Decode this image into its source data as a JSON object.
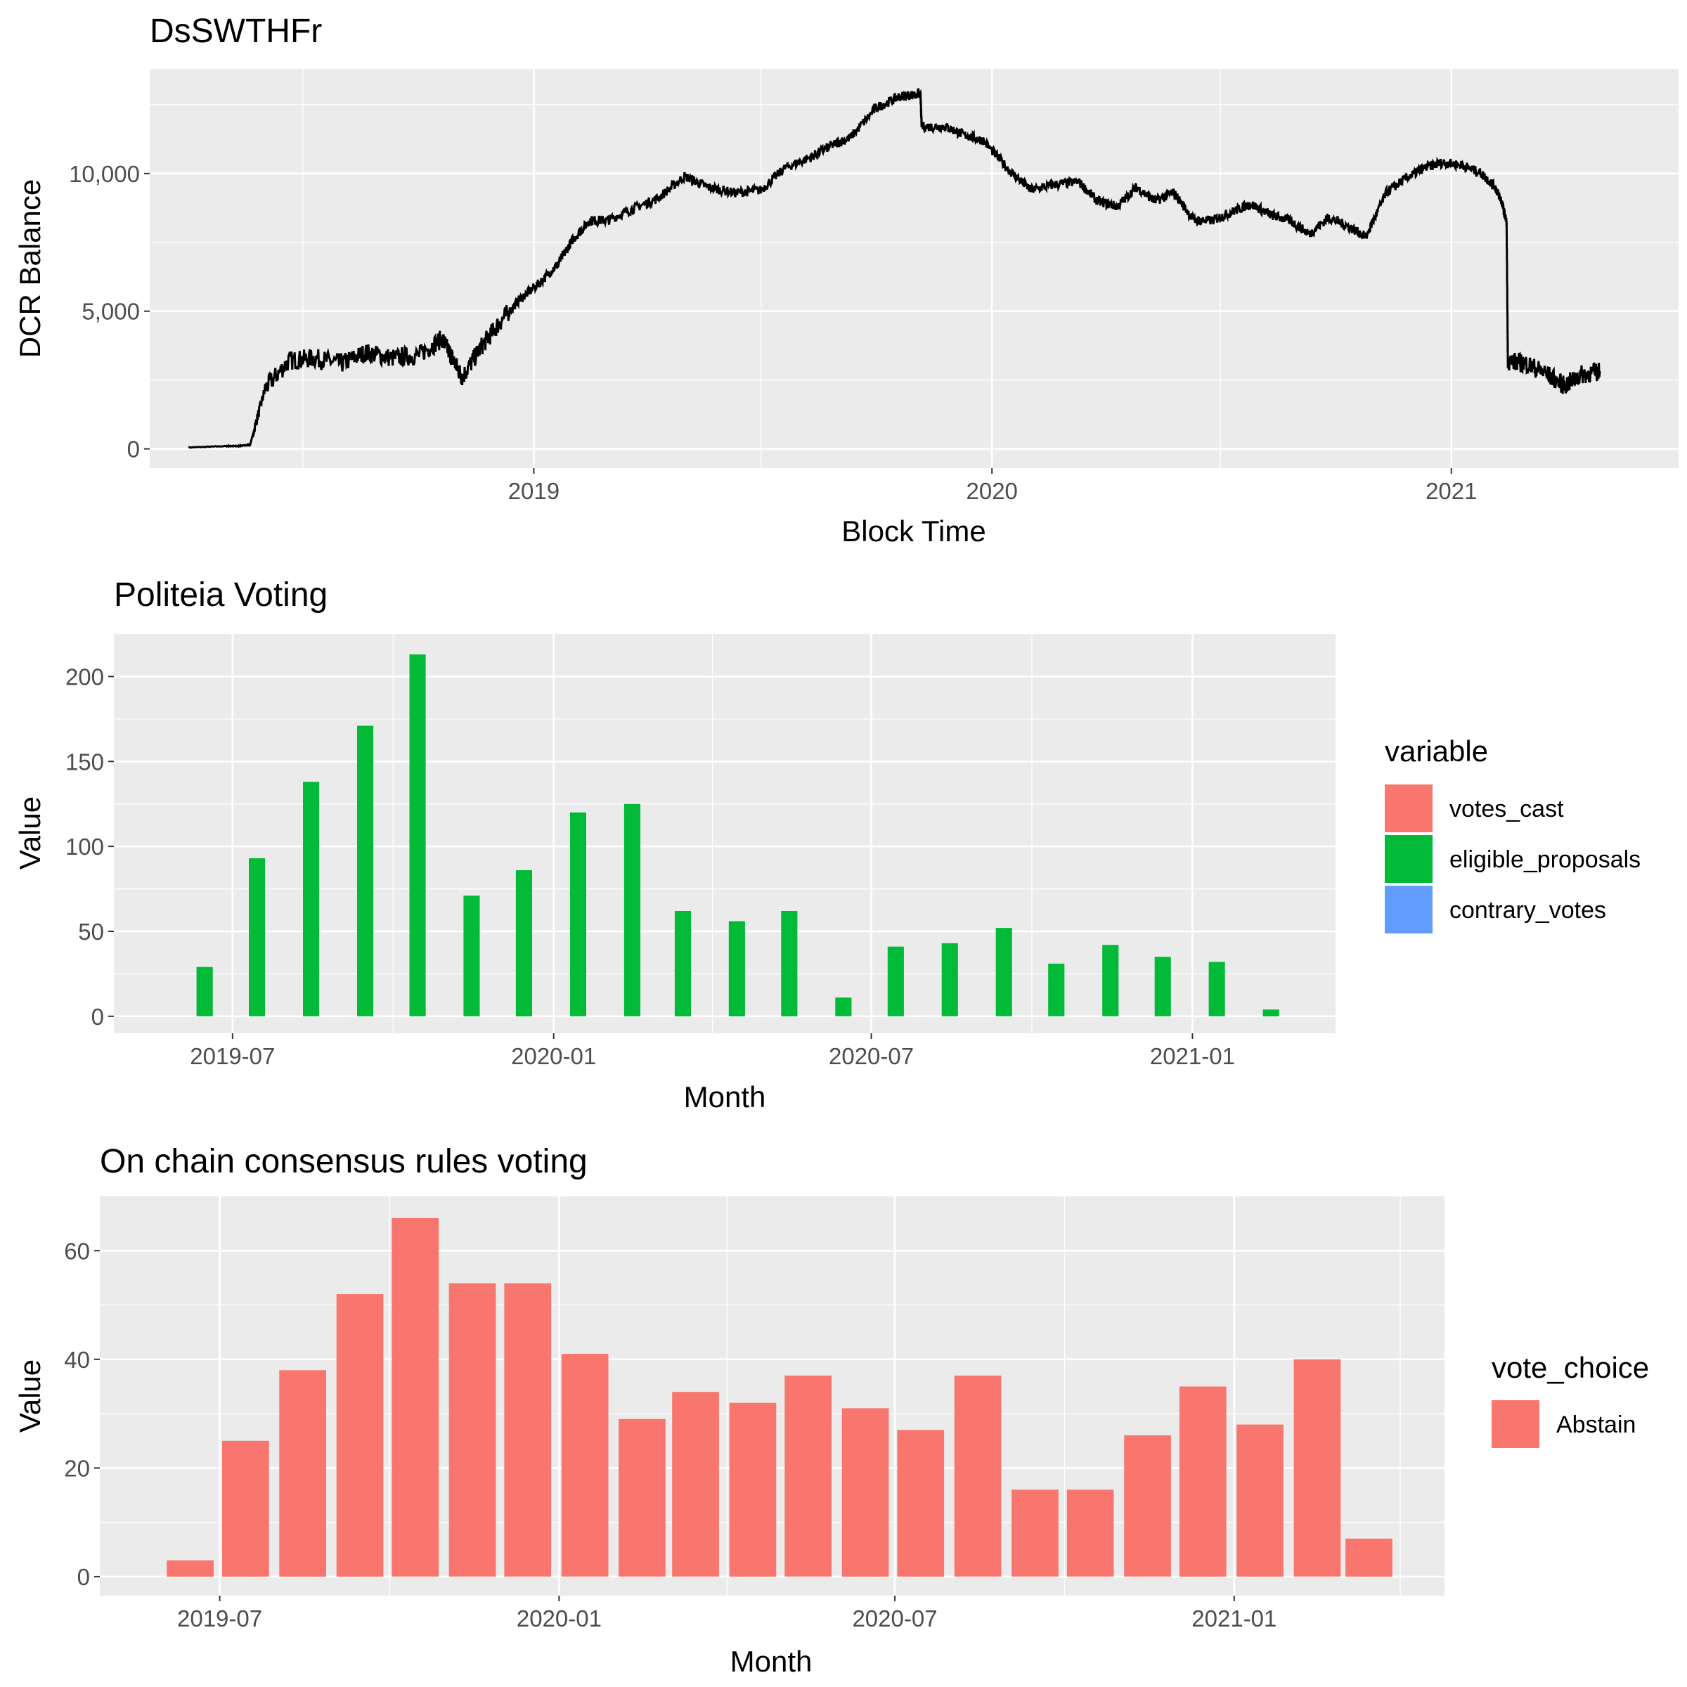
{
  "chart_data": [
    {
      "type": "line",
      "title": "DsSWTHFr",
      "xlabel": "Block Time",
      "ylabel": "DCR Balance",
      "x_ticks": [
        "2019",
        "2020",
        "2021"
      ],
      "y_ticks": [
        "0",
        "5,000",
        "10,000"
      ],
      "xlim": [
        "2018-03-01",
        "2021-07-01"
      ],
      "ylim": [
        -700,
        13800
      ],
      "grid": true,
      "line_color": "#000000",
      "series": [
        {
          "x": [
            "2018-04-01",
            "2018-05-01",
            "2018-05-10",
            "2018-05-20",
            "2018-06-01",
            "2018-06-20",
            "2018-07-10",
            "2018-08-01",
            "2018-08-20",
            "2018-09-10",
            "2018-10-01",
            "2018-10-20",
            "2018-10-28",
            "2018-11-05",
            "2018-11-20",
            "2018-12-05",
            "2018-12-20",
            "2019-01-05",
            "2019-01-20",
            "2019-02-01",
            "2019-02-15",
            "2019-03-01",
            "2019-03-20",
            "2019-04-10",
            "2019-05-01",
            "2019-05-20",
            "2019-06-10",
            "2019-07-01",
            "2019-07-20",
            "2019-08-10",
            "2019-08-25",
            "2019-09-10",
            "2019-10-01",
            "2019-10-20",
            "2019-11-05",
            "2019-11-06",
            "2019-11-25",
            "2019-12-10",
            "2019-12-25",
            "2020-01-15",
            "2020-02-01",
            "2020-02-20",
            "2020-03-10",
            "2020-03-25",
            "2020-04-10",
            "2020-04-25",
            "2020-05-10",
            "2020-05-25",
            "2020-06-10",
            "2020-06-25",
            "2020-07-10",
            "2020-07-25",
            "2020-08-10",
            "2020-08-25",
            "2020-09-10",
            "2020-09-25",
            "2020-10-10",
            "2020-10-25",
            "2020-11-10",
            "2020-11-25",
            "2020-12-10",
            "2020-12-25",
            "2021-01-10",
            "2021-01-25",
            "2021-02-05",
            "2021-02-10",
            "2021-02-14",
            "2021-02-15",
            "2021-03-01",
            "2021-03-15",
            "2021-04-01",
            "2021-04-15",
            "2021-04-30"
          ],
          "y": [
            50,
            100,
            100,
            150,
            2200,
            3200,
            3300,
            3100,
            3500,
            3300,
            3400,
            4000,
            3300,
            2600,
            3700,
            4600,
            5400,
            6000,
            6700,
            7600,
            8300,
            8300,
            8700,
            9100,
            9900,
            9500,
            9300,
            9400,
            10200,
            10600,
            11000,
            11300,
            12400,
            12800,
            12900,
            11700,
            11700,
            11400,
            11200,
            10100,
            9400,
            9600,
            9700,
            9000,
            8800,
            9500,
            9000,
            9300,
            8300,
            8300,
            8600,
            8900,
            8500,
            8300,
            7800,
            8400,
            8100,
            7700,
            9300,
            9800,
            10200,
            10400,
            10300,
            10000,
            9500,
            9000,
            8200,
            3200,
            3100,
            2800,
            2300,
            2700,
            2800
          ]
        }
      ]
    },
    {
      "type": "bar",
      "title": "Politeia Voting",
      "xlabel": "Month",
      "ylabel": "Value",
      "x_ticks": [
        "2019-07",
        "2020-01",
        "2020-07",
        "2021-01"
      ],
      "y_ticks": [
        "0",
        "50",
        "100",
        "150",
        "200"
      ],
      "ylim": [
        -10,
        225
      ],
      "grid": true,
      "legend_title": "variable",
      "legend_position": "right",
      "categories": [
        "2019-06",
        "2019-07",
        "2019-08",
        "2019-09",
        "2019-10",
        "2019-11",
        "2019-12",
        "2020-01",
        "2020-02",
        "2020-03",
        "2020-04",
        "2020-05",
        "2020-06",
        "2020-07",
        "2020-08",
        "2020-09",
        "2020-10",
        "2020-11",
        "2020-12",
        "2021-01",
        "2021-02"
      ],
      "series": [
        {
          "name": "votes_cast",
          "color": "#F8766D",
          "values": [
            0,
            0,
            0,
            0,
            0,
            0,
            0,
            0,
            0,
            0,
            0,
            0,
            0,
            0,
            0,
            0,
            0,
            0,
            0,
            0,
            0
          ]
        },
        {
          "name": "eligible_proposals",
          "color": "#00BA38",
          "values": [
            29,
            93,
            138,
            171,
            213,
            71,
            86,
            120,
            125,
            62,
            56,
            62,
            11,
            41,
            43,
            52,
            31,
            42,
            35,
            32,
            4
          ]
        },
        {
          "name": "contrary_votes",
          "color": "#619CFF",
          "values": [
            0,
            0,
            0,
            0,
            0,
            0,
            0,
            0,
            0,
            0,
            0,
            0,
            0,
            0,
            0,
            0,
            0,
            0,
            0,
            0,
            0
          ]
        }
      ]
    },
    {
      "type": "bar",
      "title": "On chain consensus rules voting",
      "xlabel": "Month",
      "ylabel": "Value",
      "x_ticks": [
        "2019-07",
        "2020-01",
        "2020-07",
        "2021-01"
      ],
      "y_ticks": [
        "0",
        "20",
        "40",
        "60"
      ],
      "ylim": [
        -3.5,
        70
      ],
      "grid": true,
      "legend_title": "vote_choice",
      "legend_position": "right",
      "categories": [
        "2019-06",
        "2019-07",
        "2019-08",
        "2019-09",
        "2019-10",
        "2019-11",
        "2019-12",
        "2020-01",
        "2020-02",
        "2020-03",
        "2020-04",
        "2020-05",
        "2020-06",
        "2020-07",
        "2020-08",
        "2020-09",
        "2020-10",
        "2020-11",
        "2020-12",
        "2021-01",
        "2021-02",
        "2021-03"
      ],
      "series": [
        {
          "name": "Abstain",
          "color": "#F8766D",
          "values": [
            3,
            25,
            38,
            52,
            66,
            54,
            54,
            41,
            29,
            34,
            32,
            37,
            31,
            27,
            37,
            16,
            16,
            26,
            35,
            28,
            40,
            7
          ]
        }
      ]
    }
  ]
}
